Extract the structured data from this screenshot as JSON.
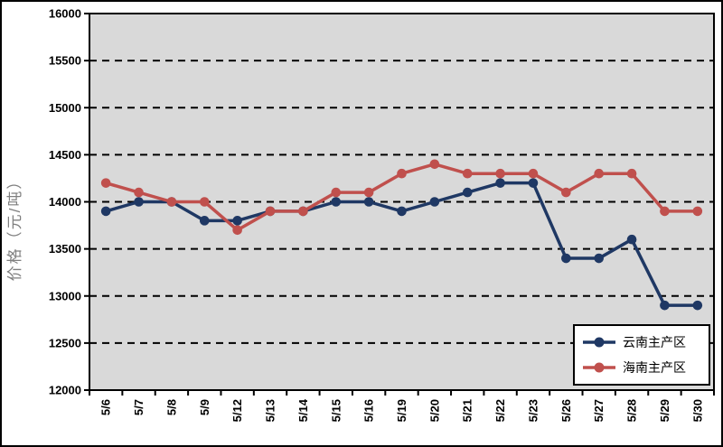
{
  "chart_data": {
    "type": "line",
    "title": "",
    "xlabel": "",
    "ylabel": "价格（元/吨）",
    "categories": [
      "5/6",
      "5/7",
      "5/8",
      "5/9",
      "5/12",
      "5/13",
      "5/14",
      "5/15",
      "5/16",
      "5/19",
      "5/20",
      "5/21",
      "5/22",
      "5/23",
      "5/26",
      "5/27",
      "5/28",
      "5/29",
      "5/30"
    ],
    "series": [
      {
        "name": "云南主产区",
        "color": "#1F3864",
        "marker": "circle",
        "values": [
          13900,
          14000,
          14000,
          13800,
          13800,
          13900,
          13900,
          14000,
          14000,
          13900,
          14000,
          14100,
          14200,
          14200,
          13400,
          13400,
          13600,
          12900,
          12900
        ]
      },
      {
        "name": "海南主产区",
        "color": "#C0504D",
        "marker": "circle",
        "values": [
          14200,
          14100,
          14000,
          14000,
          13700,
          13900,
          13900,
          14100,
          14100,
          14300,
          14400,
          14300,
          14300,
          14300,
          14100,
          14300,
          14300,
          13900,
          13900
        ]
      }
    ],
    "ylim": [
      12000,
      16000
    ],
    "ytick_step": 500,
    "grid": "horizontal-dashed",
    "gridline_color": "#000000",
    "plot_bg": "#D9D9D9",
    "legend_position": "bottom-right-inside"
  }
}
